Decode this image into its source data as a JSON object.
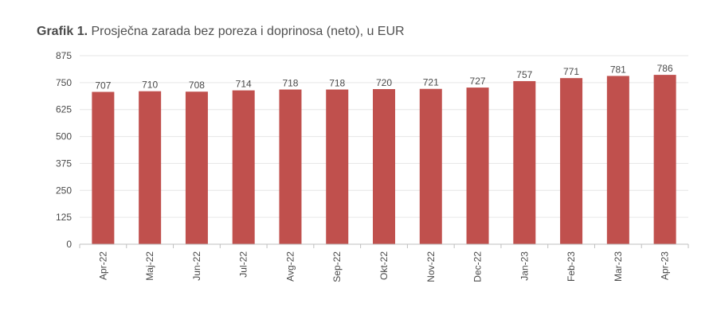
{
  "title": {
    "prefix": "Grafik 1.",
    "text": "Prosječna zarada bez poreza i doprinosa (neto), u EUR"
  },
  "chart_data": {
    "type": "bar",
    "title": "Grafik 1. Prosječna zarada bez poreza i doprinosa (neto), u EUR",
    "categories": [
      "Apr-22",
      "Maj-22",
      "Jun-22",
      "Jul-22",
      "Avg-22",
      "Sep-22",
      "Okt-22",
      "Nov-22",
      "Dec-22",
      "Jan-23",
      "Feb-23",
      "Mar-23",
      "Apr-23"
    ],
    "values": [
      707,
      710,
      708,
      714,
      718,
      718,
      720,
      721,
      727,
      757,
      771,
      781,
      786
    ],
    "yticks": [
      0,
      125,
      250,
      375,
      500,
      625,
      750,
      875
    ],
    "ylim": [
      0,
      875
    ],
    "xlabel": "",
    "ylabel": "",
    "grid": true,
    "legend": "none",
    "bar_color": "#c0504d",
    "grid_color": "#e6e6e6",
    "axis_color": "#bfbfbf"
  }
}
